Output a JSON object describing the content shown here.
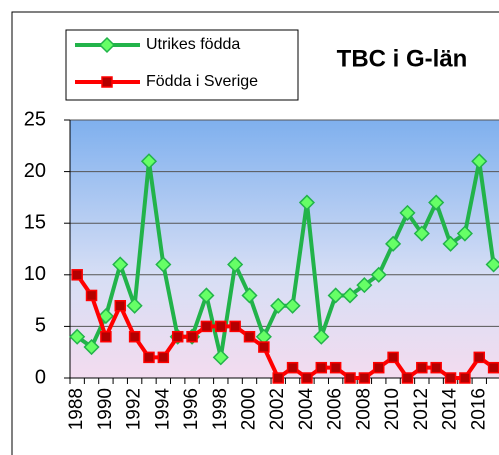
{
  "chart_data": {
    "type": "line",
    "title": "TBC i G-län",
    "categories": [
      "1988",
      null,
      "1990",
      null,
      "1992",
      null,
      "1994",
      null,
      "1996",
      null,
      "1998",
      null,
      "2000",
      null,
      "2002",
      null,
      "2004",
      null,
      "2006",
      null,
      "2008",
      null,
      "2010",
      null,
      "2012",
      null,
      "2014",
      null,
      "2016",
      null
    ],
    "series": [
      {
        "name": "Utrikes födda",
        "color": "#22b34a",
        "values": [
          4,
          3,
          6,
          11,
          7,
          21,
          11,
          4,
          4,
          8,
          2,
          11,
          8,
          4,
          7,
          7,
          17,
          4,
          8,
          8,
          9,
          10,
          13,
          16,
          14,
          17,
          13,
          14,
          21,
          11
        ]
      },
      {
        "name": "Födda i Sverige",
        "color": "#ff0000",
        "values": [
          10,
          8,
          4,
          7,
          4,
          2,
          2,
          4,
          4,
          5,
          5,
          5,
          4,
          3,
          0,
          1,
          0,
          1,
          1,
          0,
          0,
          1,
          2,
          0,
          1,
          1,
          0,
          0,
          2,
          1
        ]
      }
    ],
    "ylim": [
      0,
      25
    ],
    "yticks": [
      0,
      5,
      10,
      15,
      20,
      25
    ],
    "grid": true
  }
}
